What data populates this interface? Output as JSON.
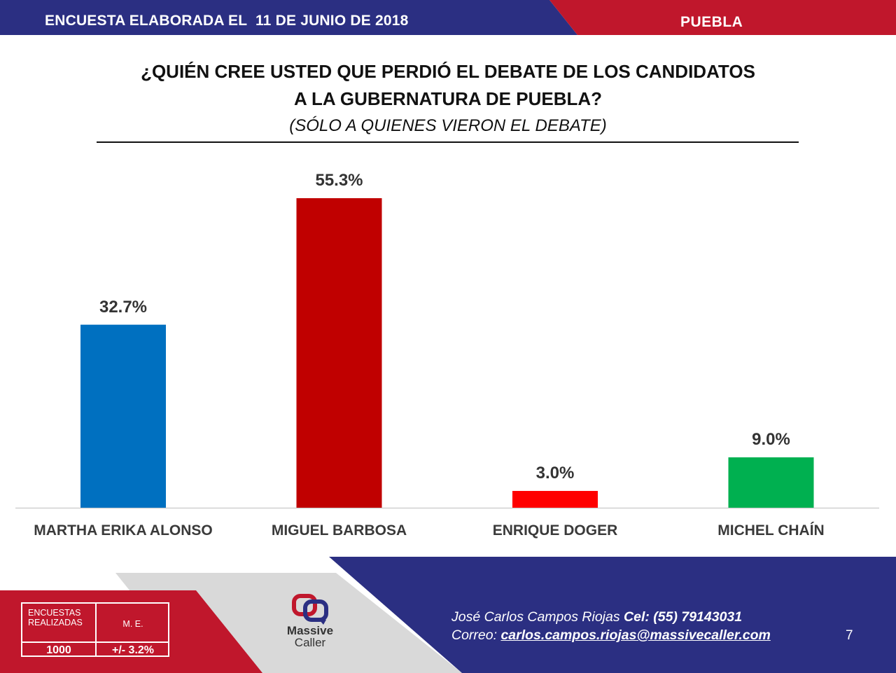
{
  "header": {
    "title": "ENCUESTA ELABORADA EL  11 DE JUNIO DE 2018",
    "region": "PUEBLA",
    "colors": {
      "blue": "#2b2f82",
      "red": "#c0172c"
    }
  },
  "chart_data": {
    "type": "bar",
    "title_line1": "¿QUIÉN CREE USTED QUE PERDIÓ EL DEBATE DE LOS CANDIDATOS",
    "title_line2": "A LA GUBERNATURA DE PUEBLA?",
    "subtitle": "(SÓLO A QUIENES VIERON EL DEBATE)",
    "categories": [
      "MARTHA ERIKA ALONSO",
      "MIGUEL BARBOSA",
      "ENRIQUE DOGER",
      "MICHEL CHAÍN"
    ],
    "values": [
      32.7,
      55.3,
      3.0,
      9.0
    ],
    "value_labels": [
      "32.7%",
      "55.3%",
      "3.0%",
      "9.0%"
    ],
    "colors": [
      "#0070c0",
      "#c00000",
      "#ff0000",
      "#00b050"
    ],
    "ylim": [
      0,
      55.3
    ],
    "grid": false,
    "legend": "none"
  },
  "footer": {
    "stats": {
      "label_surveys": "ENCUESTAS REALIZADAS",
      "label_margin": "M. E.",
      "surveys": "1000",
      "margin": "+/- 3.2%"
    },
    "logo": {
      "line1": "Massive",
      "line2": "Caller",
      "icon": "massive-caller-logo-icon"
    },
    "contact": {
      "name": "José Carlos Campos Riojas",
      "phone_label": "Cel: (55) 79143031",
      "email_label": "Correo:",
      "email": "carlos.campos.riojas@massivecaller.com"
    },
    "page_number": "7"
  }
}
